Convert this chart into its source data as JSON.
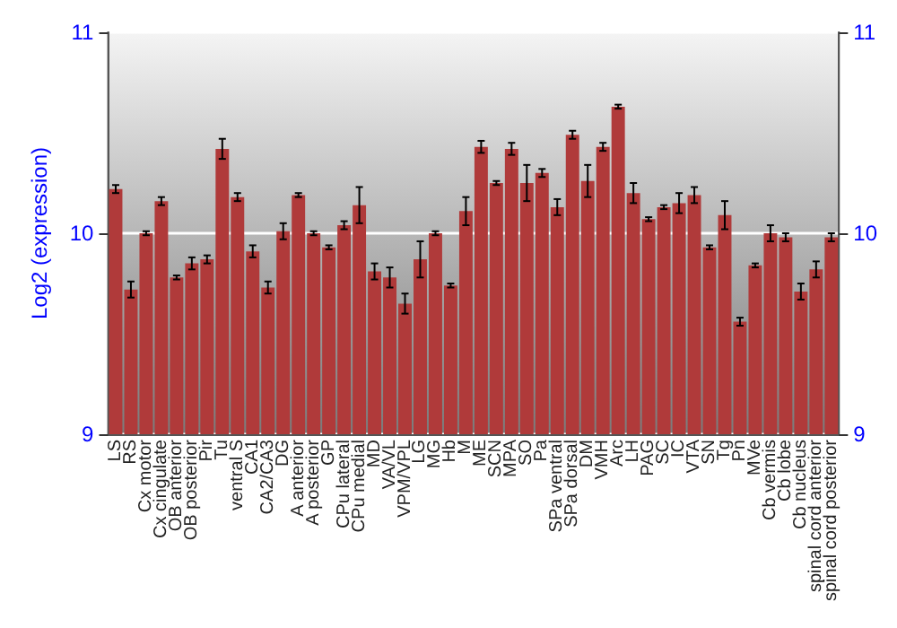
{
  "chart_data": {
    "type": "bar",
    "ylabel": "Log2 (expression)",
    "categories": [
      "LS",
      "RS",
      "Cx motor",
      "Cx cingulate",
      "OB anterior",
      "OB posterior",
      "Pir",
      "Tu",
      "ventral S",
      "CA1",
      "CA2/CA3",
      "DG",
      "A anterior",
      "A posterior",
      "GP",
      "CPu lateral",
      "CPu medial",
      "MD",
      "VA/VL",
      "VPM/VPL",
      "LG",
      "MG",
      "Hb",
      "M",
      "ME",
      "SCN",
      "MPA",
      "SO",
      "Pa",
      "SPa ventral",
      "SPa dorsal",
      "DM",
      "VMH",
      "Arc",
      "LH",
      "PAG",
      "SC",
      "IC",
      "VTA",
      "SN",
      "Tg",
      "Pn",
      "MVe",
      "Cb vermis",
      "Cb lobe",
      "Cb nucleus",
      "spinal cord anterior",
      "spinal cord posterior"
    ],
    "values": [
      10.22,
      9.72,
      10.0,
      10.16,
      9.78,
      9.85,
      9.87,
      10.42,
      10.18,
      9.91,
      9.73,
      10.01,
      10.19,
      10.0,
      9.93,
      10.04,
      10.14,
      9.81,
      9.78,
      9.65,
      9.87,
      10.0,
      9.74,
      10.11,
      10.43,
      10.25,
      10.42,
      10.25,
      10.3,
      10.13,
      10.49,
      10.26,
      10.43,
      10.63,
      10.2,
      10.07,
      10.13,
      10.15,
      10.19,
      9.93,
      10.09,
      9.56,
      9.84,
      10.0,
      9.98,
      9.71,
      9.82,
      9.98
    ],
    "errors": [
      0.02,
      0.04,
      0.01,
      0.02,
      0.01,
      0.03,
      0.02,
      0.05,
      0.02,
      0.03,
      0.03,
      0.04,
      0.01,
      0.01,
      0.01,
      0.02,
      0.09,
      0.04,
      0.05,
      0.05,
      0.09,
      0.01,
      0.01,
      0.07,
      0.03,
      0.01,
      0.03,
      0.09,
      0.02,
      0.04,
      0.02,
      0.08,
      0.02,
      0.01,
      0.05,
      0.01,
      0.01,
      0.05,
      0.04,
      0.01,
      0.07,
      0.02,
      0.01,
      0.04,
      0.02,
      0.04,
      0.04,
      0.02
    ],
    "color": "#b03a3a",
    "ylim": [
      9,
      11
    ],
    "yticks": [
      9,
      10,
      11
    ],
    "y2lim": [
      9,
      11
    ],
    "y2ticks": [
      9,
      10,
      11
    ],
    "grid": "y"
  }
}
